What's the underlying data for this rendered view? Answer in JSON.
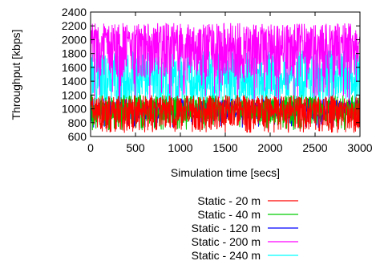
{
  "chart_data": {
    "type": "line",
    "title": "",
    "xlabel": "Simulation time [secs]",
    "ylabel": "Throughput [kbps]",
    "xlim": [
      0,
      3000
    ],
    "ylim": [
      600,
      2400
    ],
    "xticks": [
      "0",
      "500",
      "1000",
      "1500",
      "2000",
      "2500",
      "3000"
    ],
    "yticks": [
      "600",
      "800",
      "1000",
      "1200",
      "1400",
      "1600",
      "1800",
      "2000",
      "2200",
      "2400"
    ],
    "grid": false,
    "legend_position": "below-plot",
    "series": [
      {
        "name": "Static - 20 m",
        "color": "#ff0000",
        "mean": 1000,
        "low": 700,
        "high": 1200
      },
      {
        "name": "Static - 40 m",
        "color": "#00cc00",
        "mean": 1000,
        "low": 780,
        "high": 1200
      },
      {
        "name": "Static - 120 m",
        "color": "#0000ff",
        "mean": 1000,
        "low": 850,
        "high": 1150
      },
      {
        "name": "Static - 200 m",
        "color": "#ff00ff",
        "mean": 1960,
        "low": 1450,
        "high": 2240
      },
      {
        "name": "Static - 240 m",
        "color": "#00ffff",
        "mean": 1450,
        "low": 1100,
        "high": 1850
      }
    ]
  }
}
